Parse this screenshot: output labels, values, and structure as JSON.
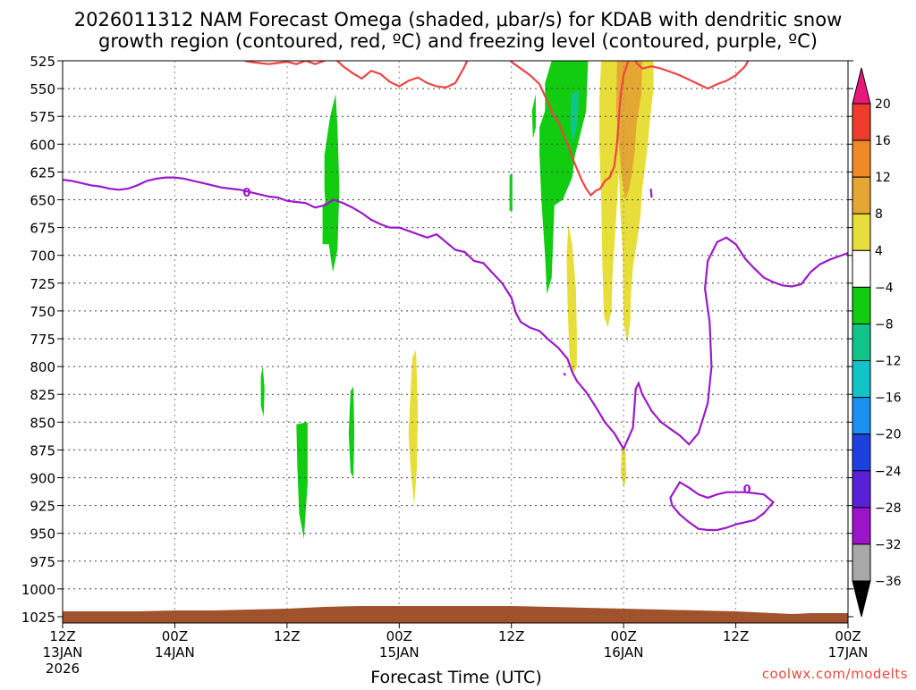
{
  "chart_data": {
    "type": "heatmap",
    "title_line1": "2026011312 NAM Forecast Omega (shaded, μbar/s) for KDAB with dendritic snow",
    "title_line2": "growth region (contoured, red, ºC) and freezing level (contoured, purple, ºC)",
    "xlabel": "Forecast Time (UTC)",
    "credit": "coolwx.com/modelts",
    "y_levels": [
      "525",
      "550",
      "575",
      "600",
      "625",
      "650",
      "675",
      "700",
      "725",
      "750",
      "775",
      "800",
      "825",
      "850",
      "875",
      "900",
      "925",
      "950",
      "975",
      "1000",
      "1025"
    ],
    "y_values": [
      525,
      550,
      575,
      600,
      625,
      650,
      675,
      700,
      725,
      750,
      775,
      800,
      825,
      850,
      875,
      900,
      925,
      950,
      975,
      1000,
      1025
    ],
    "x_ticks": [
      {
        "hour": 0,
        "l1": "12Z",
        "l2": "13JAN",
        "l3": "2026"
      },
      {
        "hour": 12,
        "l1": "00Z",
        "l2": "14JAN",
        "l3": ""
      },
      {
        "hour": 24,
        "l1": "12Z",
        "l2": "",
        "l3": ""
      },
      {
        "hour": 36,
        "l1": "00Z",
        "l2": "15JAN",
        "l3": ""
      },
      {
        "hour": 48,
        "l1": "12Z",
        "l2": "",
        "l3": ""
      },
      {
        "hour": 60,
        "l1": "00Z",
        "l2": "16JAN",
        "l3": ""
      },
      {
        "hour": 72,
        "l1": "12Z",
        "l2": "",
        "l3": ""
      },
      {
        "hour": 84,
        "l1": "00Z",
        "l2": "17JAN",
        "l3": ""
      }
    ],
    "x_range_hours": [
      0,
      84
    ],
    "colorbar": {
      "labels": [
        "20",
        "16",
        "12",
        "8",
        "4",
        "−4",
        "−8",
        "−12",
        "−16",
        "−20",
        "−24",
        "−28",
        "−32",
        "−36"
      ],
      "top_arrow_color": "#e8187a",
      "bottom_arrow_color": "#000000",
      "bins": [
        {
          "from": 16,
          "to": 20,
          "color": "#ef3b2c"
        },
        {
          "from": 12,
          "to": 16,
          "color": "#f08a26"
        },
        {
          "from": 8,
          "to": 12,
          "color": "#e5a733"
        },
        {
          "from": 4,
          "to": 8,
          "color": "#e8de3a"
        },
        {
          "from": -4,
          "to": 4,
          "color": "#ffffff"
        },
        {
          "from": -8,
          "to": -4,
          "color": "#11cc11"
        },
        {
          "from": -12,
          "to": -8,
          "color": "#11c48a"
        },
        {
          "from": -16,
          "to": -12,
          "color": "#10c4c8"
        },
        {
          "from": -20,
          "to": -16,
          "color": "#1a90f0"
        },
        {
          "from": -24,
          "to": -20,
          "color": "#1e3fe0"
        },
        {
          "from": -28,
          "to": -24,
          "color": "#5a20d8"
        },
        {
          "from": -32,
          "to": -28,
          "color": "#9b14c8"
        },
        {
          "from": -36,
          "to": -32,
          "color": "#a8a8a8"
        }
      ]
    },
    "ground_color": "#a0522d",
    "freezing_level_color": "#9a1ac8",
    "freezing_level_label": "0",
    "dgz_color": "#ee4444",
    "omega_regions": [
      {
        "cat": -6,
        "pts": [
          [
            28.6,
            576
          ],
          [
            29.2,
            555
          ],
          [
            29.4,
            585
          ],
          [
            29.6,
            640
          ],
          [
            29.4,
            695
          ],
          [
            28.9,
            715
          ],
          [
            28.3,
            680
          ],
          [
            28.0,
            640
          ],
          [
            28.0,
            610
          ]
        ]
      },
      {
        "cat": -6,
        "pts": [
          [
            27.8,
            655
          ],
          [
            28.4,
            650
          ],
          [
            28.5,
            690
          ],
          [
            27.8,
            690
          ]
        ]
      },
      {
        "cat": -6,
        "pts": [
          [
            21.2,
            809
          ],
          [
            21.4,
            800
          ],
          [
            21.6,
            820
          ],
          [
            21.5,
            845
          ],
          [
            21.2,
            835
          ]
        ]
      },
      {
        "cat": -6,
        "pts": [
          [
            25.0,
            852
          ],
          [
            26.2,
            850
          ],
          [
            26.2,
            905
          ],
          [
            26.0,
            930
          ],
          [
            25.8,
            955
          ],
          [
            25.3,
            932
          ],
          [
            25.1,
            890
          ]
        ]
      },
      {
        "cat": -6,
        "pts": [
          [
            30.8,
            822
          ],
          [
            31.1,
            818
          ],
          [
            31.2,
            860
          ],
          [
            31.1,
            900
          ],
          [
            30.8,
            895
          ],
          [
            30.6,
            860
          ]
        ]
      },
      {
        "cat": -6,
        "pts": [
          [
            47.8,
            628
          ],
          [
            48.1,
            626
          ],
          [
            48.1,
            660
          ],
          [
            47.8,
            660
          ]
        ]
      },
      {
        "cat": -6,
        "pts": [
          [
            50.2,
            570
          ],
          [
            50.6,
            555
          ],
          [
            50.6,
            585
          ],
          [
            50.3,
            595
          ]
        ]
      },
      {
        "cat": -6,
        "pts": [
          [
            52.3,
            525
          ],
          [
            56.2,
            525
          ],
          [
            56.0,
            570
          ],
          [
            55.4,
            590
          ],
          [
            54.8,
            610
          ],
          [
            54.5,
            630
          ],
          [
            54.0,
            640
          ],
          [
            53.5,
            650
          ],
          [
            52.6,
            655
          ],
          [
            52.3,
            720
          ],
          [
            51.8,
            735
          ],
          [
            51.6,
            700
          ],
          [
            51.2,
            650
          ],
          [
            51.0,
            610
          ],
          [
            51.0,
            585
          ],
          [
            51.6,
            570
          ],
          [
            51.6,
            545
          ]
        ]
      },
      {
        "cat": -10,
        "pts": [
          [
            54.4,
            555
          ],
          [
            55.2,
            552
          ],
          [
            55.1,
            580
          ],
          [
            54.6,
            600
          ],
          [
            54.3,
            585
          ]
        ]
      },
      {
        "cat": 6,
        "pts": [
          [
            57.6,
            525
          ],
          [
            63.2,
            525
          ],
          [
            63.2,
            550
          ],
          [
            62.8,
            580
          ],
          [
            62.6,
            600
          ],
          [
            62.3,
            620
          ],
          [
            62.0,
            640
          ],
          [
            61.8,
            665
          ],
          [
            61.4,
            690
          ],
          [
            61.0,
            710
          ],
          [
            60.8,
            735
          ],
          [
            60.7,
            760
          ],
          [
            60.4,
            780
          ],
          [
            60.0,
            760
          ],
          [
            59.9,
            700
          ],
          [
            59.6,
            650
          ],
          [
            59.5,
            625
          ],
          [
            58.8,
            720
          ],
          [
            58.7,
            750
          ],
          [
            58.3,
            765
          ],
          [
            57.9,
            755
          ],
          [
            57.7,
            700
          ],
          [
            57.6,
            650
          ],
          [
            57.4,
            600
          ],
          [
            57.4,
            560
          ]
        ]
      },
      {
        "cat": 10,
        "pts": [
          [
            59.3,
            525
          ],
          [
            62.0,
            525
          ],
          [
            61.9,
            555
          ],
          [
            61.4,
            580
          ],
          [
            61.2,
            605
          ],
          [
            60.9,
            625
          ],
          [
            60.6,
            640
          ],
          [
            60.2,
            650
          ],
          [
            59.8,
            630
          ],
          [
            59.5,
            600
          ],
          [
            59.2,
            570
          ]
        ]
      },
      {
        "cat": 6,
        "pts": [
          [
            54.1,
            672
          ],
          [
            54.5,
            690
          ],
          [
            54.9,
            730
          ],
          [
            55.0,
            770
          ],
          [
            55.0,
            800
          ],
          [
            54.5,
            808
          ],
          [
            54.2,
            790
          ],
          [
            54.0,
            740
          ],
          [
            53.9,
            700
          ]
        ]
      },
      {
        "cat": 6,
        "pts": [
          [
            59.8,
            872
          ],
          [
            60.2,
            875
          ],
          [
            60.3,
            900
          ],
          [
            60.0,
            910
          ],
          [
            59.7,
            895
          ]
        ]
      },
      {
        "cat": 6,
        "pts": [
          [
            37.4,
            792
          ],
          [
            37.8,
            785
          ],
          [
            38.0,
            840
          ],
          [
            37.9,
            890
          ],
          [
            37.6,
            925
          ],
          [
            37.2,
            890
          ],
          [
            37.0,
            860
          ]
        ]
      }
    ],
    "freezing_level": [
      [
        0,
        632
      ],
      [
        1,
        633
      ],
      [
        2,
        635
      ],
      [
        3,
        637
      ],
      [
        4,
        638
      ],
      [
        5,
        640
      ],
      [
        6,
        641
      ],
      [
        7,
        640
      ],
      [
        8,
        637
      ],
      [
        9,
        633
      ],
      [
        10,
        631
      ],
      [
        11,
        630
      ],
      [
        12,
        630
      ],
      [
        13,
        631
      ],
      [
        14,
        633
      ],
      [
        15,
        635
      ],
      [
        16,
        637
      ],
      [
        17,
        639
      ],
      [
        18,
        640
      ],
      [
        19,
        641
      ],
      [
        20,
        643
      ],
      [
        21,
        645
      ],
      [
        22,
        647
      ],
      [
        23,
        648
      ],
      [
        24,
        651
      ],
      [
        25,
        652
      ],
      [
        26,
        653
      ],
      [
        27,
        657
      ],
      [
        28,
        655
      ],
      [
        29,
        650
      ],
      [
        30,
        653
      ],
      [
        31,
        657
      ],
      [
        32,
        662
      ],
      [
        33,
        668
      ],
      [
        34,
        672
      ],
      [
        35,
        675
      ],
      [
        36,
        675
      ],
      [
        37,
        678
      ],
      [
        38,
        681
      ],
      [
        39,
        684
      ],
      [
        40,
        681
      ],
      [
        41,
        688
      ],
      [
        42,
        695
      ],
      [
        43,
        697
      ],
      [
        44,
        705
      ],
      [
        45,
        707
      ],
      [
        46,
        716
      ],
      [
        47,
        725
      ],
      [
        48,
        738
      ],
      [
        48.5,
        752
      ],
      [
        49,
        760
      ],
      [
        50,
        765
      ],
      [
        51,
        768
      ],
      [
        52,
        776
      ],
      [
        53,
        783
      ],
      [
        54,
        793
      ],
      [
        54.5,
        805
      ],
      [
        55,
        813
      ],
      [
        56,
        823
      ],
      [
        57,
        836
      ],
      [
        58,
        850
      ],
      [
        59,
        860
      ],
      [
        60,
        874
      ],
      [
        61,
        855
      ],
      [
        61.3,
        820
      ],
      [
        61.6,
        815
      ],
      [
        62,
        825
      ],
      [
        63,
        840
      ],
      [
        64,
        850
      ],
      [
        65,
        856
      ],
      [
        66,
        862
      ],
      [
        67,
        870
      ],
      [
        68,
        860
      ],
      [
        69,
        833
      ],
      [
        69.4,
        800
      ],
      [
        69.2,
        760
      ],
      [
        68.7,
        730
      ],
      [
        69.0,
        705
      ],
      [
        70,
        688
      ],
      [
        71,
        684
      ],
      [
        72,
        690
      ],
      [
        73,
        703
      ],
      [
        74,
        712
      ],
      [
        75,
        720
      ],
      [
        76,
        724
      ],
      [
        77,
        727
      ],
      [
        78,
        728
      ],
      [
        79,
        726
      ],
      [
        80,
        715
      ],
      [
        81,
        708
      ],
      [
        82,
        704
      ],
      [
        83,
        701
      ],
      [
        84,
        698
      ]
    ],
    "freezing_level_loop": [
      [
        65,
        918
      ],
      [
        66,
        904
      ],
      [
        67,
        909
      ],
      [
        68,
        915
      ],
      [
        69,
        918
      ],
      [
        70,
        915
      ],
      [
        71,
        913
      ],
      [
        72,
        913
      ],
      [
        73,
        913
      ],
      [
        74,
        914
      ],
      [
        75,
        915
      ],
      [
        76,
        922
      ],
      [
        75,
        932
      ],
      [
        74,
        938
      ],
      [
        73,
        940
      ],
      [
        72,
        942
      ],
      [
        71,
        945
      ],
      [
        70,
        947
      ],
      [
        69,
        947
      ],
      [
        68,
        946
      ],
      [
        67,
        940
      ],
      [
        66,
        933
      ],
      [
        65.2,
        925
      ]
    ],
    "freezing_level_small": [
      [
        53.6,
        806
      ],
      [
        53.8,
        808
      ]
    ],
    "dendritic_upper": [
      [
        19.5,
        525
      ],
      [
        20,
        526
      ],
      [
        21,
        527
      ],
      [
        22,
        528
      ],
      [
        23,
        527
      ],
      [
        24,
        526
      ],
      [
        25,
        528
      ],
      [
        26,
        525
      ],
      [
        27,
        528
      ],
      [
        28,
        525
      ],
      [
        29,
        522
      ],
      [
        30,
        530
      ],
      [
        31,
        536
      ],
      [
        32,
        541
      ],
      [
        33,
        534
      ],
      [
        34,
        537
      ],
      [
        35,
        544
      ],
      [
        36,
        548
      ],
      [
        37,
        543
      ],
      [
        38,
        540
      ],
      [
        39,
        545
      ],
      [
        40,
        548
      ],
      [
        41,
        549
      ],
      [
        42,
        545
      ],
      [
        43,
        530
      ],
      [
        43.5,
        520
      ]
    ],
    "dendritic_main": [
      [
        47.5,
        520
      ],
      [
        48,
        526
      ],
      [
        49,
        532
      ],
      [
        50,
        538
      ],
      [
        51,
        546
      ],
      [
        51.5,
        555
      ],
      [
        52,
        564
      ],
      [
        52.5,
        574
      ],
      [
        53,
        580
      ],
      [
        53.5,
        590
      ],
      [
        54,
        600
      ],
      [
        54.5,
        612
      ],
      [
        55,
        622
      ],
      [
        55.5,
        632
      ],
      [
        56,
        640
      ],
      [
        56.5,
        646
      ],
      [
        57,
        642
      ],
      [
        57.5,
        640
      ],
      [
        58,
        633
      ],
      [
        58.5,
        630
      ],
      [
        59,
        620
      ],
      [
        59.3,
        600
      ],
      [
        59.5,
        575
      ],
      [
        59.7,
        555
      ],
      [
        60,
        538
      ],
      [
        60.5,
        525
      ],
      [
        61,
        522
      ],
      [
        61.5,
        528
      ],
      [
        62,
        532
      ],
      [
        63,
        530
      ],
      [
        64,
        532
      ],
      [
        65,
        535
      ],
      [
        66,
        538
      ],
      [
        67,
        542
      ],
      [
        68,
        546
      ],
      [
        69,
        550
      ],
      [
        70,
        546
      ],
      [
        71,
        543
      ],
      [
        72,
        538
      ],
      [
        73,
        530
      ],
      [
        73.5,
        522
      ]
    ]
  }
}
